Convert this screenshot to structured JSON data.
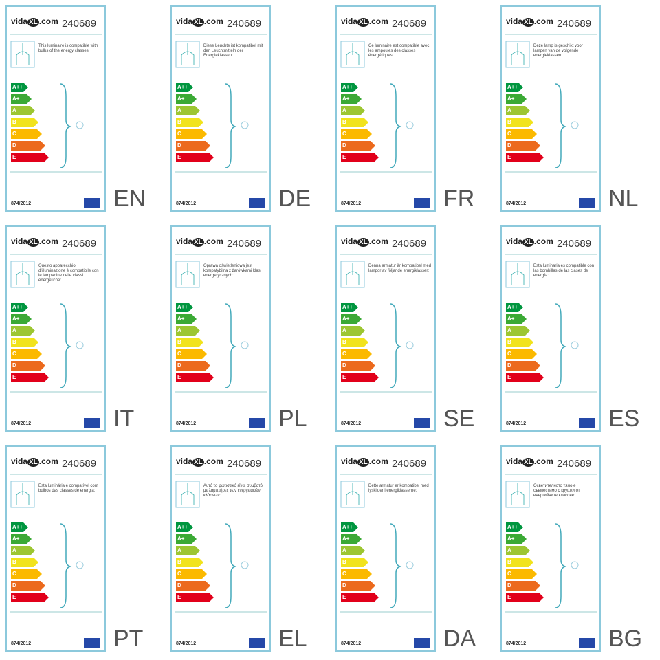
{
  "logo_brand": "vida",
  "logo_mark": "XL",
  "logo_suffix": ".com",
  "code": "240689",
  "regulation": "874/2012",
  "energy_classes": [
    "A++",
    "A+",
    "A",
    "B",
    "C",
    "D",
    "E"
  ],
  "labels": [
    {
      "language": "EN",
      "description": "This luminaire is compatible with bulbs of the energy classes:"
    },
    {
      "language": "DE",
      "description": "Diese Leuchte ist kompatibel mit den Leuchtmitteln der Energieklassen:"
    },
    {
      "language": "FR",
      "description": "Ce luminaire est compatible avec les ampoules des classes énergétiques:"
    },
    {
      "language": "NL",
      "description": "Deze lamp is geschikt voor lampen van de volgende energieklassen:"
    },
    {
      "language": "IT",
      "description": "Questo apparecchio d'illuminazione è compatibile con le lampadine delle classi energetiche:"
    },
    {
      "language": "PL",
      "description": "Oprawa oświetleniowa jest kompatybilna z żarówkami klas energetycznych:"
    },
    {
      "language": "SE",
      "description": "Denna armatur är kompatibel med lampor av följande energiklasser:"
    },
    {
      "language": "ES",
      "description": "Esta luminaria es compatible con las bombillas de las clases de energía:"
    },
    {
      "language": "PT",
      "description": "Esta luminária é compatível com bulbos das classes de energia:"
    },
    {
      "language": "EL",
      "description": "Αυτό το φωτιστικό είναι συμβατό με λαμπτήρες των ενεργειακών κλάσεων:"
    },
    {
      "language": "DA",
      "description": "Dette armatur er kompatibel med lyskilder i energiklasserne:"
    },
    {
      "language": "BG",
      "description": "Осветителното тяло е съвместимо с крушки от енергийните класове:"
    }
  ]
}
